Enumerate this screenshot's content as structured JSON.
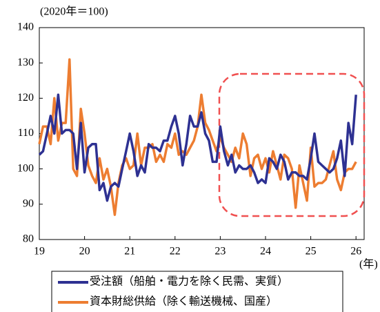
{
  "chart_data": {
    "type": "line",
    "unit_label": "(2020年＝100)",
    "x_unit_label": "(年)",
    "x": [
      19,
      19.083,
      19.167,
      19.25,
      19.333,
      19.417,
      19.5,
      19.583,
      19.667,
      19.75,
      19.833,
      19.917,
      20,
      20.083,
      20.167,
      20.25,
      20.333,
      20.417,
      20.5,
      20.583,
      20.667,
      20.75,
      20.833,
      20.917,
      21,
      21.083,
      21.167,
      21.25,
      21.333,
      21.417,
      21.5,
      21.583,
      21.667,
      21.75,
      21.833,
      21.917,
      22,
      22.083,
      22.167,
      22.25,
      22.333,
      22.417,
      22.5,
      22.583,
      22.667,
      22.75,
      22.833,
      22.917,
      23,
      23.083,
      23.167,
      23.25,
      23.333,
      23.417,
      23.5,
      23.583,
      23.667,
      23.75,
      23.833,
      23.917,
      24,
      24.083,
      24.167,
      24.25,
      24.333,
      24.417,
      24.5,
      24.583,
      24.667,
      24.75,
      24.833,
      24.917,
      25,
      25.083,
      25.167,
      25.25,
      25.333,
      25.417,
      25.5,
      25.583,
      25.667,
      25.75,
      25.833,
      25.917,
      26
    ],
    "series": [
      {
        "name": "受注額（船舶・電力を除く民需、実質）",
        "color": "#2e3192",
        "values": [
          104,
          105,
          110,
          115,
          110,
          121,
          110,
          111,
          111,
          110,
          100,
          113,
          99,
          106,
          107,
          107,
          94,
          96,
          91,
          95,
          96,
          95,
          100,
          105,
          110,
          105,
          98,
          101,
          99,
          107,
          106,
          106,
          105,
          108,
          108,
          112,
          115,
          110,
          101,
          107,
          115,
          112,
          112,
          116,
          110,
          108,
          102,
          102,
          112,
          105,
          101,
          104,
          99,
          101,
          100,
          100,
          101,
          99,
          96,
          97,
          96,
          103,
          102,
          100,
          104,
          102,
          97,
          99,
          99,
          98,
          98,
          97,
          103,
          110,
          102,
          101,
          100,
          99,
          100,
          103,
          108,
          98,
          113,
          107,
          121
        ]
      },
      {
        "name": "資本財総供給（除く輸送機械、国産）",
        "color": "#ed7d31",
        "values": [
          107,
          112,
          112,
          107,
          120,
          108,
          113,
          113,
          131,
          100,
          98,
          117,
          110,
          101,
          98,
          96,
          103,
          97,
          100,
          95,
          87,
          96,
          101,
          103,
          100,
          101,
          110,
          101,
          106,
          106,
          107,
          102,
          104,
          102,
          107,
          106,
          110,
          104,
          105,
          104,
          106,
          108,
          112,
          121,
          113,
          111,
          108,
          105,
          109,
          106,
          104,
          102,
          106,
          103,
          110,
          107,
          98,
          103,
          104,
          100,
          103,
          99,
          105,
          101,
          97,
          104,
          103,
          100,
          89,
          101,
          96,
          91,
          106,
          95,
          96,
          96,
          97,
          101,
          105,
          97,
          94,
          99,
          100,
          100,
          102
        ]
      }
    ],
    "xlim": [
      19,
      26.18
    ],
    "xticks": [
      19,
      20,
      21,
      22,
      23,
      24,
      25,
      26
    ],
    "ylim": [
      80,
      140
    ],
    "yticks": [
      80,
      90,
      100,
      110,
      120,
      130,
      140
    ]
  }
}
